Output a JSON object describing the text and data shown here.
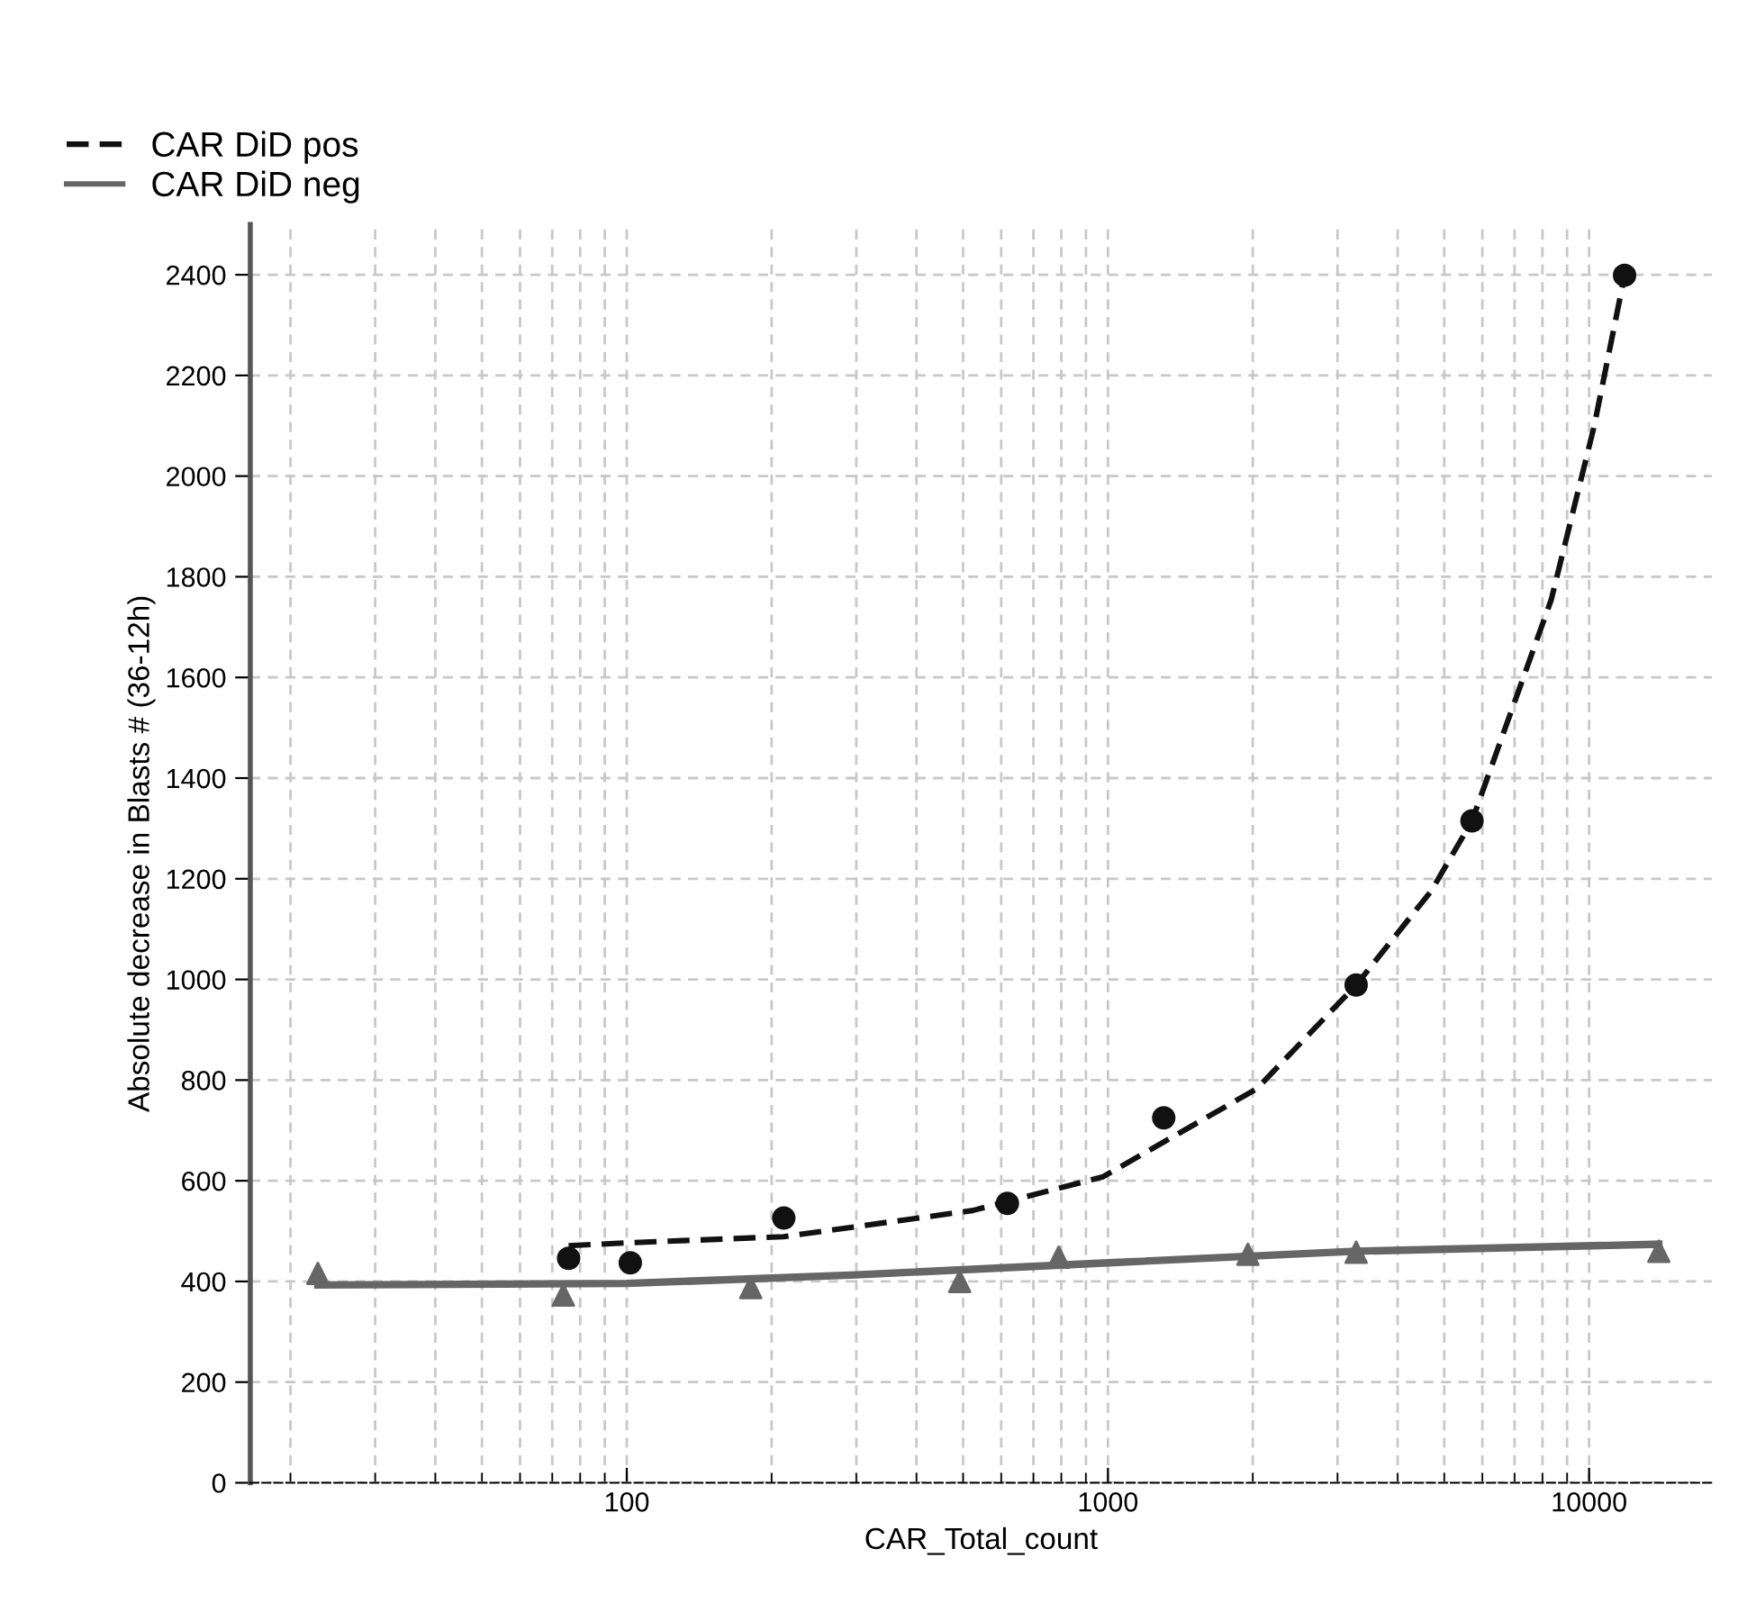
{
  "chart_data": {
    "type": "scatter",
    "xlabel": "CAR_Total_count",
    "ylabel": "Absolute decrease in Blasts # (36-12h)",
    "log": "x",
    "xlim": [
      16.5,
      18000
    ],
    "xticks": [
      100,
      1000,
      10000
    ],
    "ylim": [
      0,
      2500
    ],
    "yticks": [
      0,
      200,
      400,
      600,
      800,
      1000,
      1200,
      1400,
      1600,
      1800,
      2000,
      2200,
      2400
    ],
    "grid": true,
    "legend": "top left",
    "series": [
      {
        "color": "#111111",
        "marker": "circle",
        "x": [
          75.7,
          101.7,
          212,
          618,
          1306,
          3280,
          5710,
          11850
        ],
        "values": [
          446,
          437,
          526,
          555,
          725,
          989,
          1315,
          2399
        ]
      },
      {
        "color": "#666666",
        "marker": "triangle",
        "x": [
          22.8,
          73.8,
          181,
          492,
          790,
          1954,
          3280,
          13960
        ],
        "values": [
          416,
          373,
          388,
          400,
          448,
          454,
          458,
          460
        ]
      },
      {
        "type": "line",
        "name": "CAR DiD pos",
        "color": "#111111",
        "line_style": "dashed",
        "x": [
          75.7,
          101.7,
          212,
          524,
          977,
          2040,
          3280,
          4700,
          5710,
          8340,
          10250,
          11850
        ],
        "values": [
          471,
          477,
          489,
          541,
          608,
          783,
          989,
          1176,
          1315,
          1754,
          2100,
          2399
        ]
      },
      {
        "type": "line",
        "name": "CAR DiD neg",
        "color": "#666666",
        "line_style": "solid",
        "x": [
          22.8,
          100,
          300,
          1000,
          3280,
          13960
        ],
        "values": [
          393,
          396,
          413,
          437,
          460,
          474
        ]
      }
    ]
  }
}
